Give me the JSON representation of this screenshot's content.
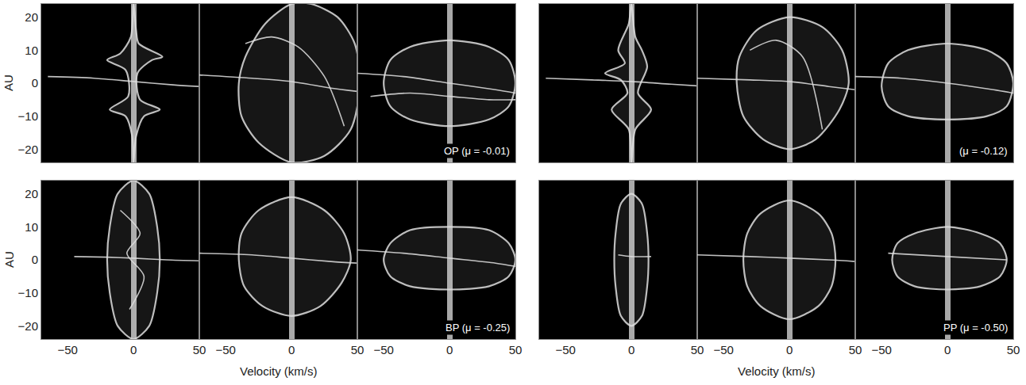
{
  "chart_data": [
    {
      "type": "line",
      "xlim": [
        -70,
        50
      ],
      "ylim": [
        -24,
        24
      ],
      "xticks": [
        -50,
        0,
        50
      ],
      "yticks": [
        -20,
        -10,
        0,
        10,
        20
      ],
      "tick_labels": "y",
      "y_label": "AU",
      "series": [
        {
          "color": "#e0e0e0",
          "x": [
            0,
            -2,
            -10,
            -20,
            -6,
            -4,
            -18,
            -6,
            -1,
            0,
            2,
            8,
            20,
            5,
            3,
            14,
            22,
            4,
            2,
            0
          ],
          "values": [
            24,
            14,
            9,
            7,
            4,
            -4,
            -8,
            -10,
            -16,
            -24,
            -16,
            -10,
            -8,
            -5,
            3,
            7,
            8,
            12,
            16,
            24
          ]
        },
        {
          "color": "#e0e0e0",
          "x": [
            -65,
            -30,
            0,
            30,
            50
          ],
          "values": [
            2,
            1.5,
            0.5,
            -0.5,
            -1
          ]
        }
      ]
    },
    {
      "type": "line",
      "xlim": [
        -70,
        50
      ],
      "ylim": [
        -24,
        24
      ],
      "xticks": [
        -50,
        0,
        50
      ],
      "yticks": [
        -20,
        -10,
        0,
        10,
        20
      ],
      "tick_labels": false,
      "series": [
        {
          "color": "#e0e0e0",
          "x": [
            0,
            -20,
            -35,
            -40,
            -38,
            -25,
            0,
            25,
            45,
            52,
            48,
            35,
            15,
            0
          ],
          "values": [
            24,
            18,
            8,
            0,
            -10,
            -18,
            -24,
            -22,
            -14,
            0,
            12,
            20,
            24,
            24
          ]
        },
        {
          "color": "#e0e0e0",
          "x": [
            -35,
            -15,
            5,
            25,
            40
          ],
          "values": [
            12,
            14,
            11,
            2,
            -13
          ]
        },
        {
          "color": "#e0e0e0",
          "x": [
            -70,
            -30,
            0,
            30,
            50
          ],
          "values": [
            2.5,
            1.5,
            0.5,
            -1.5,
            -2.5
          ]
        }
      ]
    },
    {
      "type": "line",
      "xlim": [
        -70,
        50
      ],
      "ylim": [
        -24,
        24
      ],
      "xticks": [
        -50,
        0,
        50
      ],
      "yticks": [
        -20,
        -10,
        0,
        10,
        20
      ],
      "tick_labels": false,
      "annotation": "OP (μ = -0.01)",
      "series": [
        {
          "color": "#e0e0e0",
          "x": [
            0,
            -30,
            -45,
            -50,
            -45,
            -30,
            0,
            30,
            45,
            50,
            45,
            30,
            0
          ],
          "values": [
            13,
            11,
            7,
            0,
            -7,
            -11,
            -13,
            -11,
            -7,
            0,
            7,
            11,
            13
          ]
        },
        {
          "color": "#e0e0e0",
          "x": [
            -70,
            -35,
            0,
            35,
            50
          ],
          "values": [
            3,
            2,
            0,
            -2,
            -3
          ]
        },
        {
          "color": "#e0e0e0",
          "x": [
            -60,
            -30,
            0,
            30,
            50
          ],
          "values": [
            -4,
            -3,
            -4,
            -5,
            -5
          ]
        }
      ]
    },
    {
      "type": "line",
      "xlim": [
        -70,
        50
      ],
      "ylim": [
        -24,
        24
      ],
      "xticks": [
        -50,
        0,
        50
      ],
      "yticks": [
        -20,
        -10,
        0,
        10,
        20
      ],
      "tick_labels": false,
      "series": [
        {
          "color": "#e0e0e0",
          "x": [
            0,
            -2,
            -10,
            -5,
            -20,
            -8,
            -3,
            -15,
            -2,
            0,
            3,
            15,
            5,
            12,
            8,
            3,
            0
          ],
          "values": [
            24,
            18,
            10,
            6,
            3,
            1,
            -3,
            -8,
            -14,
            -24,
            -14,
            -8,
            -3,
            5,
            10,
            14,
            24
          ]
        },
        {
          "color": "#e0e0e0",
          "x": [
            -65,
            -30,
            0,
            30,
            50
          ],
          "values": [
            1.5,
            1,
            0.5,
            -0.3,
            -0.8
          ]
        }
      ]
    },
    {
      "type": "line",
      "xlim": [
        -70,
        50
      ],
      "ylim": [
        -24,
        24
      ],
      "xticks": [
        -50,
        0,
        50
      ],
      "yticks": [
        -20,
        -10,
        0,
        10,
        20
      ],
      "tick_labels": false,
      "series": [
        {
          "color": "#e0e0e0",
          "x": [
            0,
            -25,
            -38,
            -40,
            -35,
            -20,
            0,
            20,
            38,
            45,
            40,
            25,
            0
          ],
          "values": [
            20,
            16,
            8,
            0,
            -10,
            -17,
            -20,
            -17,
            -8,
            0,
            10,
            17,
            20
          ]
        },
        {
          "color": "#e0e0e0",
          "x": [
            -30,
            -10,
            10,
            25
          ],
          "values": [
            10,
            13,
            8,
            -14
          ]
        },
        {
          "color": "#e0e0e0",
          "x": [
            -70,
            -30,
            0,
            30,
            50
          ],
          "values": [
            1.5,
            1,
            0.5,
            -1,
            -2
          ]
        }
      ]
    },
    {
      "type": "line",
      "xlim": [
        -70,
        50
      ],
      "ylim": [
        -24,
        24
      ],
      "xticks": [
        -50,
        0,
        50
      ],
      "yticks": [
        -20,
        -10,
        0,
        10,
        20
      ],
      "tick_labels": false,
      "annotation": "(μ = -0.12)",
      "series": [
        {
          "color": "#e0e0e0",
          "x": [
            0,
            -30,
            -45,
            -50,
            -45,
            -30,
            0,
            30,
            45,
            50,
            45,
            30,
            0
          ],
          "values": [
            12,
            10,
            6,
            -1,
            -7,
            -10,
            -11,
            -10,
            -7,
            0,
            6,
            10,
            12
          ]
        },
        {
          "color": "#e0e0e0",
          "x": [
            -70,
            -35,
            0,
            35,
            50
          ],
          "values": [
            2,
            1.5,
            0,
            -2,
            -3
          ]
        }
      ]
    },
    {
      "type": "line",
      "xlim": [
        -70,
        50
      ],
      "ylim": [
        -24,
        24
      ],
      "xticks": [
        -50,
        0,
        50
      ],
      "yticks": [
        -20,
        -10,
        0,
        10,
        20
      ],
      "y_label": "AU",
      "series": [
        {
          "color": "#e0e0e0",
          "x": [
            0,
            -12,
            -18,
            -20,
            -18,
            -12,
            0,
            12,
            18,
            20,
            18,
            12,
            0
          ],
          "values": [
            24,
            20,
            10,
            0,
            -10,
            -20,
            -24,
            -20,
            -10,
            0,
            10,
            20,
            24
          ]
        },
        {
          "color": "#e0e0e0",
          "x": [
            -10,
            5,
            -5,
            8,
            -3
          ],
          "values": [
            15,
            8,
            2,
            -5,
            -15
          ]
        },
        {
          "color": "#e0e0e0",
          "x": [
            -45,
            -20,
            0,
            25,
            50
          ],
          "values": [
            1,
            0.8,
            0.5,
            0,
            -0.3
          ]
        }
      ]
    },
    {
      "type": "line",
      "xlim": [
        -70,
        50
      ],
      "ylim": [
        -24,
        24
      ],
      "xticks": [
        -50,
        0,
        50
      ],
      "yticks": [
        -20,
        -10,
        0,
        10,
        20
      ],
      "tick_labels": "x",
      "x_label": "Velocity (km/s)",
      "series": [
        {
          "color": "#e0e0e0",
          "x": [
            0,
            -25,
            -38,
            -40,
            -36,
            -22,
            0,
            22,
            38,
            45,
            40,
            25,
            0
          ],
          "values": [
            19,
            15,
            8,
            0,
            -8,
            -14,
            -17,
            -14,
            -7,
            0,
            8,
            15,
            19
          ]
        },
        {
          "color": "#e0e0e0",
          "x": [
            -70,
            -30,
            0,
            30,
            50
          ],
          "values": [
            2,
            1.5,
            0.5,
            -0.5,
            -1
          ]
        }
      ]
    },
    {
      "type": "line",
      "xlim": [
        -70,
        50
      ],
      "ylim": [
        -24,
        24
      ],
      "xticks": [
        -50,
        0,
        50
      ],
      "yticks": [
        -20,
        -10,
        0,
        10,
        20
      ],
      "tick_labels": "x",
      "annotation": "BP (μ = -0.25)",
      "series": [
        {
          "color": "#e0e0e0",
          "x": [
            0,
            -30,
            -45,
            -50,
            -45,
            -30,
            0,
            30,
            45,
            50,
            45,
            30,
            0
          ],
          "values": [
            10,
            9,
            5,
            0,
            -5,
            -8,
            -9,
            -8,
            -5,
            0,
            5,
            9,
            10
          ]
        },
        {
          "color": "#e0e0e0",
          "x": [
            -70,
            -35,
            0,
            35,
            50
          ],
          "values": [
            3,
            2,
            0.5,
            -1,
            -2
          ]
        }
      ]
    },
    {
      "type": "line",
      "xlim": [
        -70,
        50
      ],
      "ylim": [
        -24,
        24
      ],
      "xticks": [
        -50,
        0,
        50
      ],
      "yticks": [
        -20,
        -10,
        0,
        10,
        20
      ],
      "tick_labels": "x",
      "series": [
        {
          "color": "#e0e0e0",
          "x": [
            0,
            -8,
            -12,
            -13,
            -12,
            -8,
            0,
            8,
            12,
            13,
            12,
            8,
            0
          ],
          "values": [
            20,
            17,
            8,
            0,
            -8,
            -17,
            -20,
            -17,
            -8,
            0,
            8,
            17,
            20
          ]
        },
        {
          "color": "#e0e0e0",
          "x": [
            -10,
            0,
            15
          ],
          "values": [
            1.5,
            1,
            1
          ]
        }
      ]
    },
    {
      "type": "line",
      "xlim": [
        -70,
        50
      ],
      "ylim": [
        -24,
        24
      ],
      "xticks": [
        -50,
        0,
        50
      ],
      "yticks": [
        -20,
        -10,
        0,
        10,
        20
      ],
      "tick_labels": "x",
      "x_label": "Velocity (km/s)",
      "series": [
        {
          "color": "#e0e0e0",
          "x": [
            0,
            -22,
            -32,
            -35,
            -32,
            -22,
            0,
            22,
            32,
            35,
            32,
            22,
            0
          ],
          "values": [
            18,
            14,
            8,
            0,
            -8,
            -14,
            -18,
            -14,
            -8,
            0,
            8,
            14,
            18
          ]
        },
        {
          "color": "#e0e0e0",
          "x": [
            -70,
            -30,
            0,
            30,
            50
          ],
          "values": [
            1.5,
            1,
            0.5,
            0,
            -0.5
          ]
        }
      ]
    },
    {
      "type": "line",
      "xlim": [
        -70,
        50
      ],
      "ylim": [
        -24,
        24
      ],
      "xticks": [
        -50,
        0,
        50
      ],
      "yticks": [
        -20,
        -10,
        0,
        10,
        20
      ],
      "tick_labels": "x",
      "annotation": "PP (μ = -0.50)",
      "series": [
        {
          "color": "#e0e0e0",
          "x": [
            0,
            -25,
            -38,
            -42,
            -38,
            -25,
            0,
            25,
            40,
            45,
            40,
            25,
            0
          ],
          "values": [
            10,
            8,
            5,
            0,
            -5,
            -8,
            -9,
            -8,
            -5,
            0,
            5,
            8,
            10
          ]
        },
        {
          "color": "#e0e0e0",
          "x": [
            -45,
            0,
            45
          ],
          "values": [
            2,
            1,
            0
          ]
        }
      ]
    }
  ]
}
